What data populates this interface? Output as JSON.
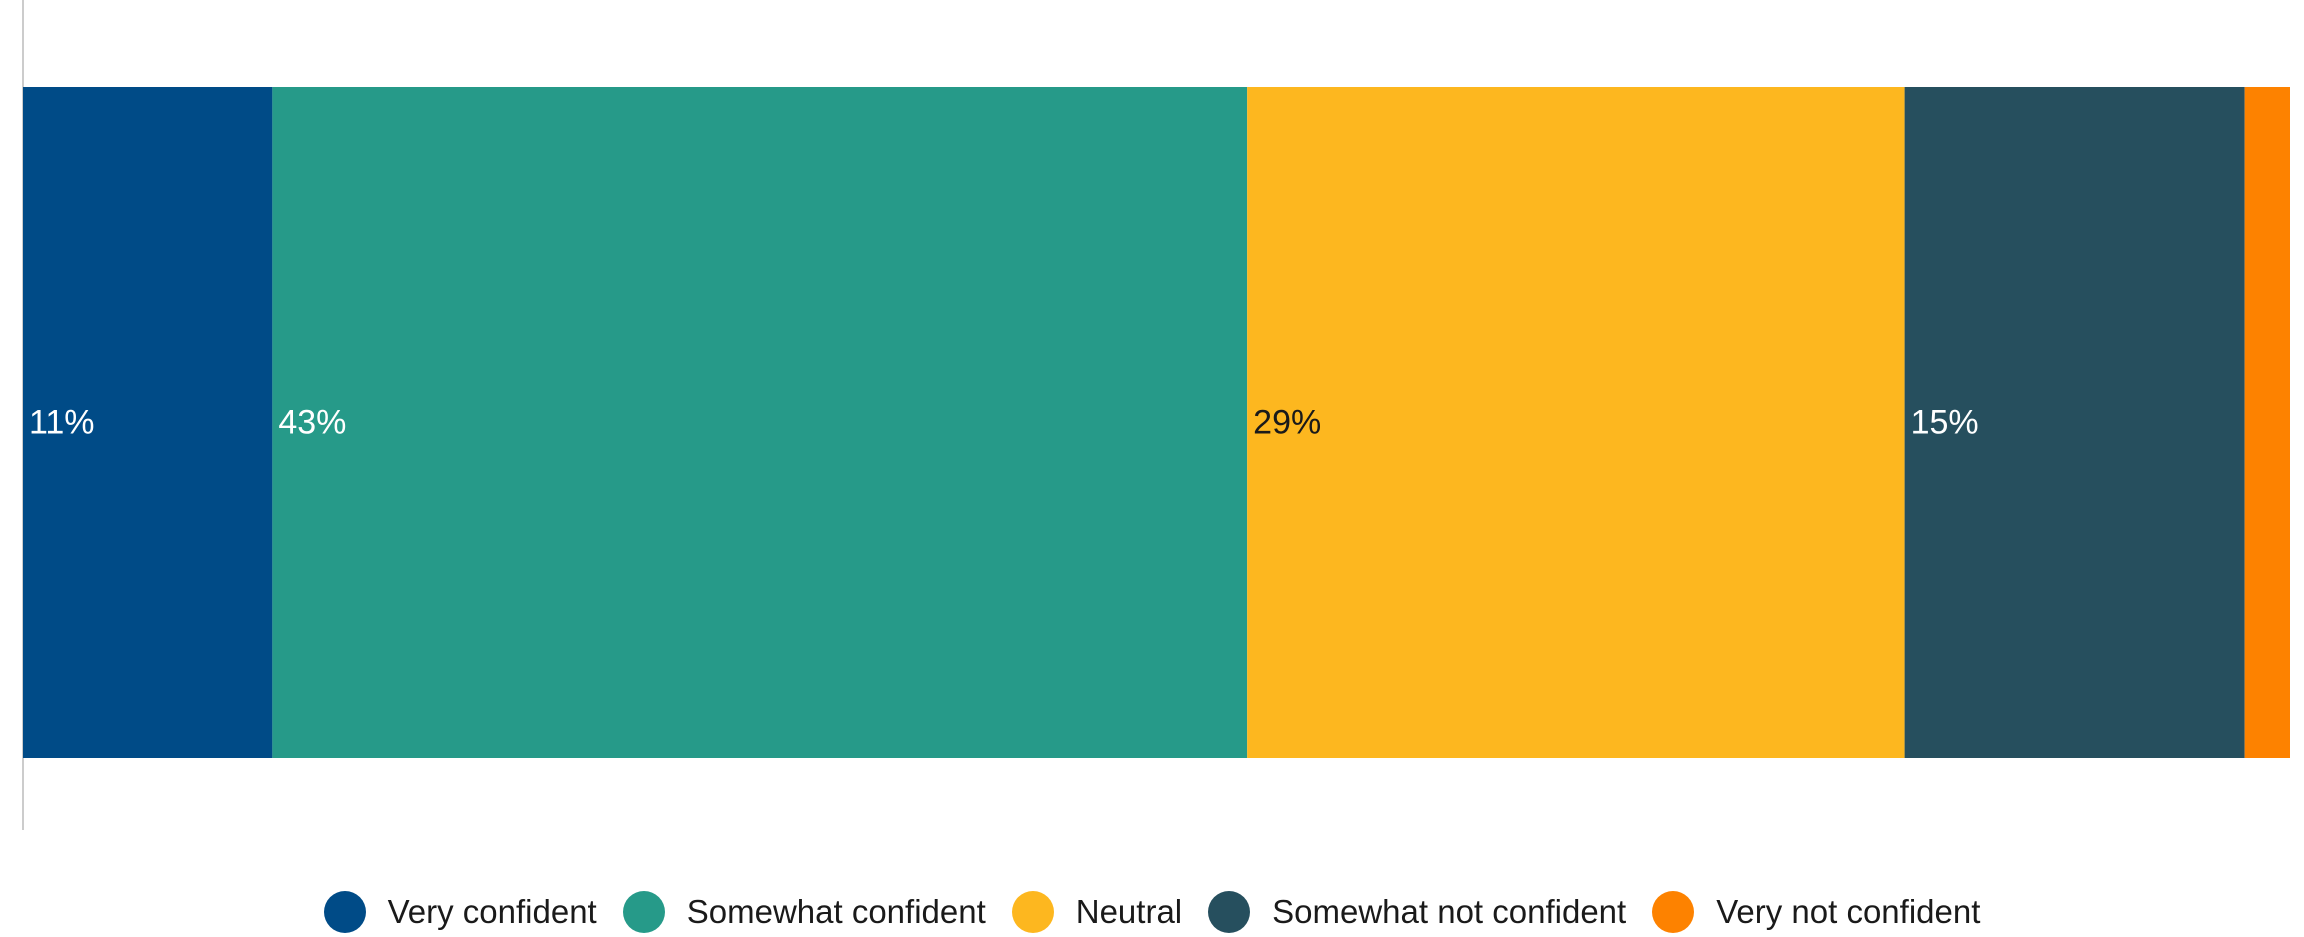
{
  "chart_data": {
    "type": "bar",
    "orientation": "horizontal",
    "stacked": true,
    "percent_stacked": true,
    "categories": [
      ""
    ],
    "series": [
      {
        "name": "Very confident",
        "values": [
          11
        ],
        "label": "11%",
        "color": "#004b87",
        "label_color": "#ffffff"
      },
      {
        "name": "Somewhat confident",
        "values": [
          43
        ],
        "label": "43%",
        "color": "#269a89",
        "label_color": "#ffffff"
      },
      {
        "name": "Neutral",
        "values": [
          29
        ],
        "label": "29%",
        "color": "#fdb71f",
        "label_color": "#1a1a1a"
      },
      {
        "name": "Somewhat not confident",
        "values": [
          15
        ],
        "label": "15%",
        "color": "#264f5e",
        "label_color": "#ffffff"
      },
      {
        "name": "Very not confident",
        "values": [
          2
        ],
        "label": "",
        "color": "#fd8200",
        "label_color": "#ffffff"
      }
    ],
    "xlim": [
      0,
      100
    ],
    "grid": false,
    "legend_position": "bottom",
    "axis_color": "#cccccc"
  }
}
